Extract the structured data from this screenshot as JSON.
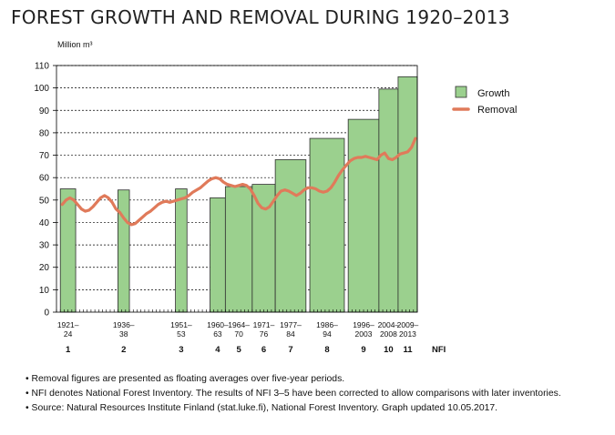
{
  "title": "FOREST GROWTH AND REMOVAL DURING 1920–2013",
  "chart_data": {
    "type": "bar",
    "ylabel": "Million m³",
    "ylim": [
      0,
      110
    ],
    "yticks": [
      0,
      10,
      20,
      30,
      40,
      50,
      60,
      70,
      80,
      90,
      100,
      110
    ],
    "grid": "horizontal-dashed",
    "legend_position": "right",
    "x_range": [
      1920,
      2013
    ],
    "nfi_label": "NFI",
    "colors": {
      "growth": "#9bd08e",
      "growth_border": "#2f2f2f",
      "removal": "#e07a5a"
    },
    "series": [
      {
        "name": "Growth",
        "kind": "bar",
        "bars": [
          {
            "start": 1921,
            "end": 1924,
            "value": 55,
            "label_top": "1921–",
            "label_bottom": "24",
            "nfi": "1"
          },
          {
            "start": 1936,
            "end": 1938,
            "value": 54.5,
            "label_top": "1936–",
            "label_bottom": "38",
            "nfi": "2"
          },
          {
            "start": 1951,
            "end": 1953,
            "value": 55,
            "label_top": "1951–",
            "label_bottom": "53",
            "nfi": "3"
          },
          {
            "start": 1960,
            "end": 1963,
            "value": 51,
            "label_top": "1960–",
            "label_bottom": "63",
            "nfi": "4"
          },
          {
            "start": 1964,
            "end": 1970,
            "value": 56,
            "label_top": "1964–",
            "label_bottom": "70",
            "nfi": "5"
          },
          {
            "start": 1971,
            "end": 1976,
            "value": 57,
            "label_top": "1971–",
            "label_bottom": "76",
            "nfi": "6"
          },
          {
            "start": 1977,
            "end": 1984,
            "value": 68,
            "label_top": "1977–",
            "label_bottom": "84",
            "nfi": "7"
          },
          {
            "start": 1986,
            "end": 1994,
            "value": 77.5,
            "label_top": "1986–",
            "label_bottom": "94",
            "nfi": "8"
          },
          {
            "start": 1996,
            "end": 2003,
            "value": 86,
            "label_top": "1996–",
            "label_bottom": "2003",
            "nfi": "9"
          },
          {
            "start": 2004,
            "end": 2008,
            "value": 99.5,
            "label_top": "2004–",
            "label_bottom": "2008",
            "nfi": "10"
          },
          {
            "start": 2009,
            "end": 2013,
            "value": 105,
            "label_top": "2009–",
            "label_bottom": "2013",
            "nfi": "11"
          }
        ]
      },
      {
        "name": "Removal",
        "kind": "line",
        "x": [
          1921,
          1922,
          1923,
          1924,
          1925,
          1926,
          1927,
          1928,
          1929,
          1930,
          1931,
          1932,
          1933,
          1934,
          1935,
          1936,
          1937,
          1938,
          1939,
          1940,
          1941,
          1942,
          1943,
          1944,
          1945,
          1946,
          1947,
          1948,
          1949,
          1950,
          1951,
          1952,
          1953,
          1954,
          1955,
          1956,
          1957,
          1958,
          1959,
          1960,
          1961,
          1962,
          1963,
          1964,
          1965,
          1966,
          1967,
          1968,
          1969,
          1970,
          1971,
          1972,
          1973,
          1974,
          1975,
          1976,
          1977,
          1978,
          1979,
          1980,
          1981,
          1982,
          1983,
          1984,
          1985,
          1986,
          1987,
          1988,
          1989,
          1990,
          1991,
          1992,
          1993,
          1994,
          1995,
          1996,
          1997,
          1998,
          1999,
          2000,
          2001,
          2002,
          2003,
          2004,
          2005,
          2006,
          2007,
          2008,
          2009,
          2010,
          2011,
          2012,
          2013
        ],
        "values": [
          48,
          50,
          51,
          50,
          48,
          46,
          45,
          45.5,
          47,
          49,
          51,
          52,
          51,
          49,
          46,
          44.5,
          42,
          40,
          39,
          39.5,
          41,
          42.5,
          44,
          45,
          46.5,
          48,
          49,
          49.5,
          49,
          49.5,
          50,
          50.5,
          51,
          52,
          53.5,
          54.5,
          55.5,
          57,
          58.5,
          59.5,
          60,
          59.5,
          58,
          57,
          56.5,
          56,
          56.5,
          57,
          56.5,
          55,
          52,
          48.5,
          46.5,
          46,
          47,
          49.5,
          52,
          54,
          54.5,
          54,
          53,
          52,
          53,
          54.5,
          55.5,
          55.5,
          55,
          54,
          53.5,
          54,
          55.5,
          58,
          61,
          63.5,
          65.5,
          67.5,
          68.5,
          69,
          69,
          69.5,
          69,
          68.5,
          68,
          70,
          71,
          68.5,
          68,
          69,
          70.5,
          71,
          71.5,
          73.5,
          77.5
        ]
      }
    ]
  },
  "notes": [
    "•  Removal figures are presented as floating averages over five-year periods.",
    "•  NFI denotes National Forest Inventory. The results of NFI 3–5 have been corrected to allow comparisons with later inventories.",
    "•  Source: Natural Resources Institute Finland (stat.luke.fi), National Forest Inventory. Graph updated 10.05.2017."
  ]
}
